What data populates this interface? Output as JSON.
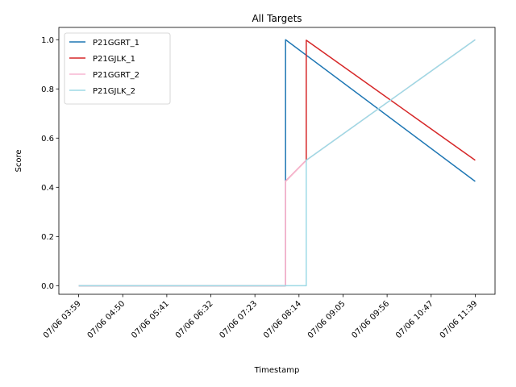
{
  "chart_data": {
    "type": "line",
    "title": "All Targets",
    "xlabel": "Timestamp",
    "ylabel": "Score",
    "x_ticks": [
      "07/06 03:59",
      "07/06 04:50",
      "07/06 05:41",
      "07/06 06:32",
      "07/06 07:23",
      "07/06 08:14",
      "07/06 09:05",
      "07/06 09:56",
      "07/06 10:47",
      "07/06 11:39"
    ],
    "x_range": [
      "07/06 03:59",
      "07/06 11:39"
    ],
    "y_ticks": [
      "0.0",
      "0.2",
      "0.4",
      "0.6",
      "0.8",
      "1.0"
    ],
    "ylim": [
      -0.035,
      1.05
    ],
    "grid": false,
    "legend_position": "top-left",
    "series": [
      {
        "name": "P21GGRT_1",
        "color": "#1f77b4",
        "x": [
          "07/06 03:59",
          "07/06 07:59",
          "07/06 07:59",
          "07/06 11:39"
        ],
        "y": [
          0.0,
          0.0,
          1.0,
          0.424
        ]
      },
      {
        "name": "P21GJLK_1",
        "color": "#d62728",
        "x": [
          "07/06 03:59",
          "07/06 07:59",
          "07/06 07:59",
          "07/06 08:23",
          "07/06 08:23",
          "07/06 11:39"
        ],
        "y": [
          0.0,
          0.0,
          0.425,
          0.51,
          0.998,
          0.51
        ]
      },
      {
        "name": "P21GGRT_2",
        "color": "#f7b6d2",
        "x": [
          "07/06 03:59",
          "07/06 07:59",
          "07/06 07:59",
          "07/06 08:23",
          "07/06 08:23",
          "07/06 11:39"
        ],
        "y": [
          0.0,
          0.0,
          0.425,
          0.51,
          0.51,
          1.0
        ]
      },
      {
        "name": "P21GJLK_2",
        "color": "#9edae5",
        "x": [
          "07/06 03:59",
          "07/06 07:59",
          "07/06 08:23",
          "07/06 08:23",
          "07/06 11:39"
        ],
        "y": [
          0.0,
          0.0,
          0.0,
          0.51,
          1.0
        ]
      }
    ]
  }
}
